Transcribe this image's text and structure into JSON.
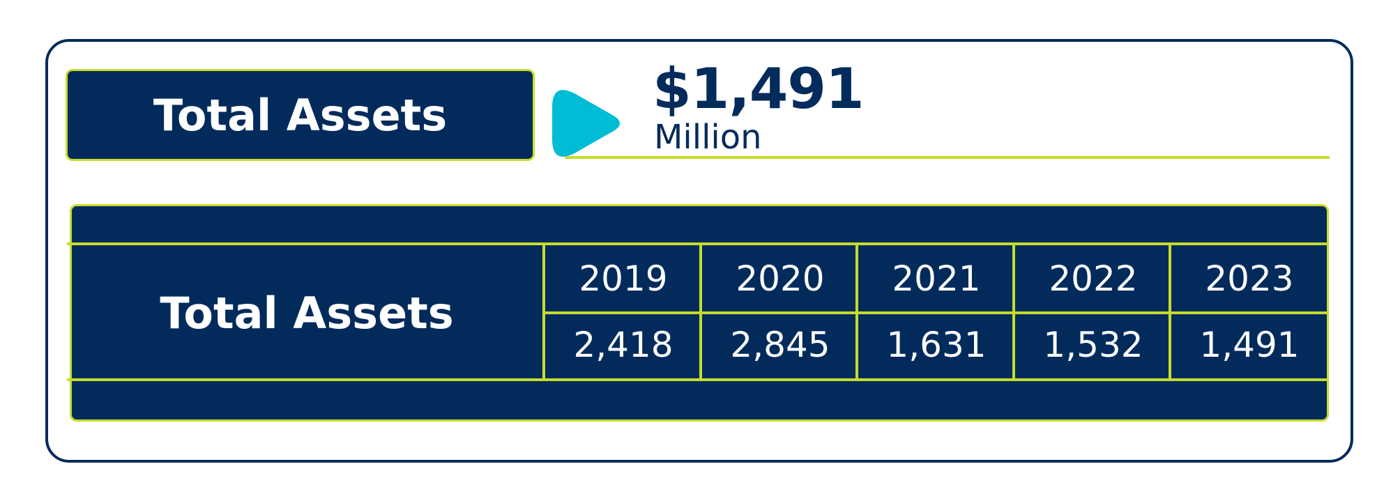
{
  "header": {
    "title": "Total Assets",
    "value": "$1,491",
    "unit": "Million"
  },
  "table": {
    "row_label": "Total Assets",
    "years": [
      "2019",
      "2020",
      "2021",
      "2022",
      "2023"
    ],
    "values": [
      "2,418",
      "2,845",
      "1,631",
      "1,532",
      "1,491"
    ]
  },
  "colors": {
    "navy": "#022b5c",
    "lime": "#c6dc2c",
    "cyan": "#00bcd4",
    "white": "#ffffff"
  },
  "icons": {
    "pointer": "play-icon"
  }
}
